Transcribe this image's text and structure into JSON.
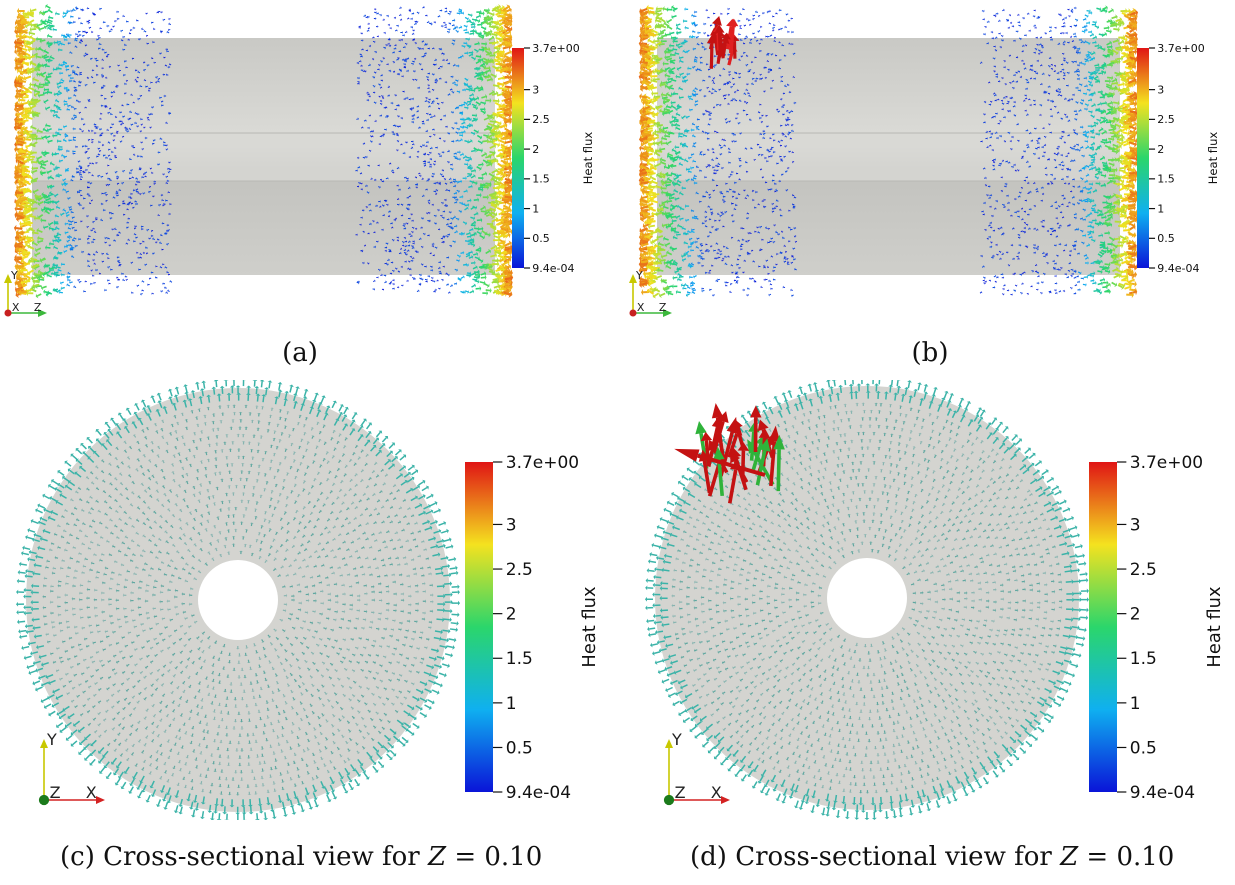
{
  "colorbar": {
    "max_label": "3.7e+00",
    "min_label": "9.4e-04",
    "ticks": [
      "3",
      "2.5",
      "2",
      "1.5",
      "1",
      "0.5"
    ],
    "tick_values": [
      3,
      2.5,
      2,
      1.5,
      1,
      0.5
    ],
    "min_value": 0.00094,
    "max_value": 3.7,
    "title": "Heat flux",
    "colors": [
      "#0a14d8",
      "#0fb0f0",
      "#2bd66b",
      "#f4e21f",
      "#e01515"
    ]
  },
  "axes": {
    "top": {
      "up": "Y",
      "right": "Z",
      "corner": "X"
    },
    "bottom": {
      "up": "Y",
      "right": "X",
      "corner": "Z"
    }
  },
  "captions": {
    "a": "(a)",
    "b": "(b)",
    "c_prefix": "(c) Cross-sectional view for ",
    "d_prefix": "(d) Cross-sectional view for ",
    "var": "Z",
    "eq": " = 0.10"
  },
  "colors": {
    "surface": "#d2d2cf",
    "arrow_cyan": "#3bb3a8",
    "arrow_blue": "#3a6fd0",
    "hot": "#c41212"
  }
}
